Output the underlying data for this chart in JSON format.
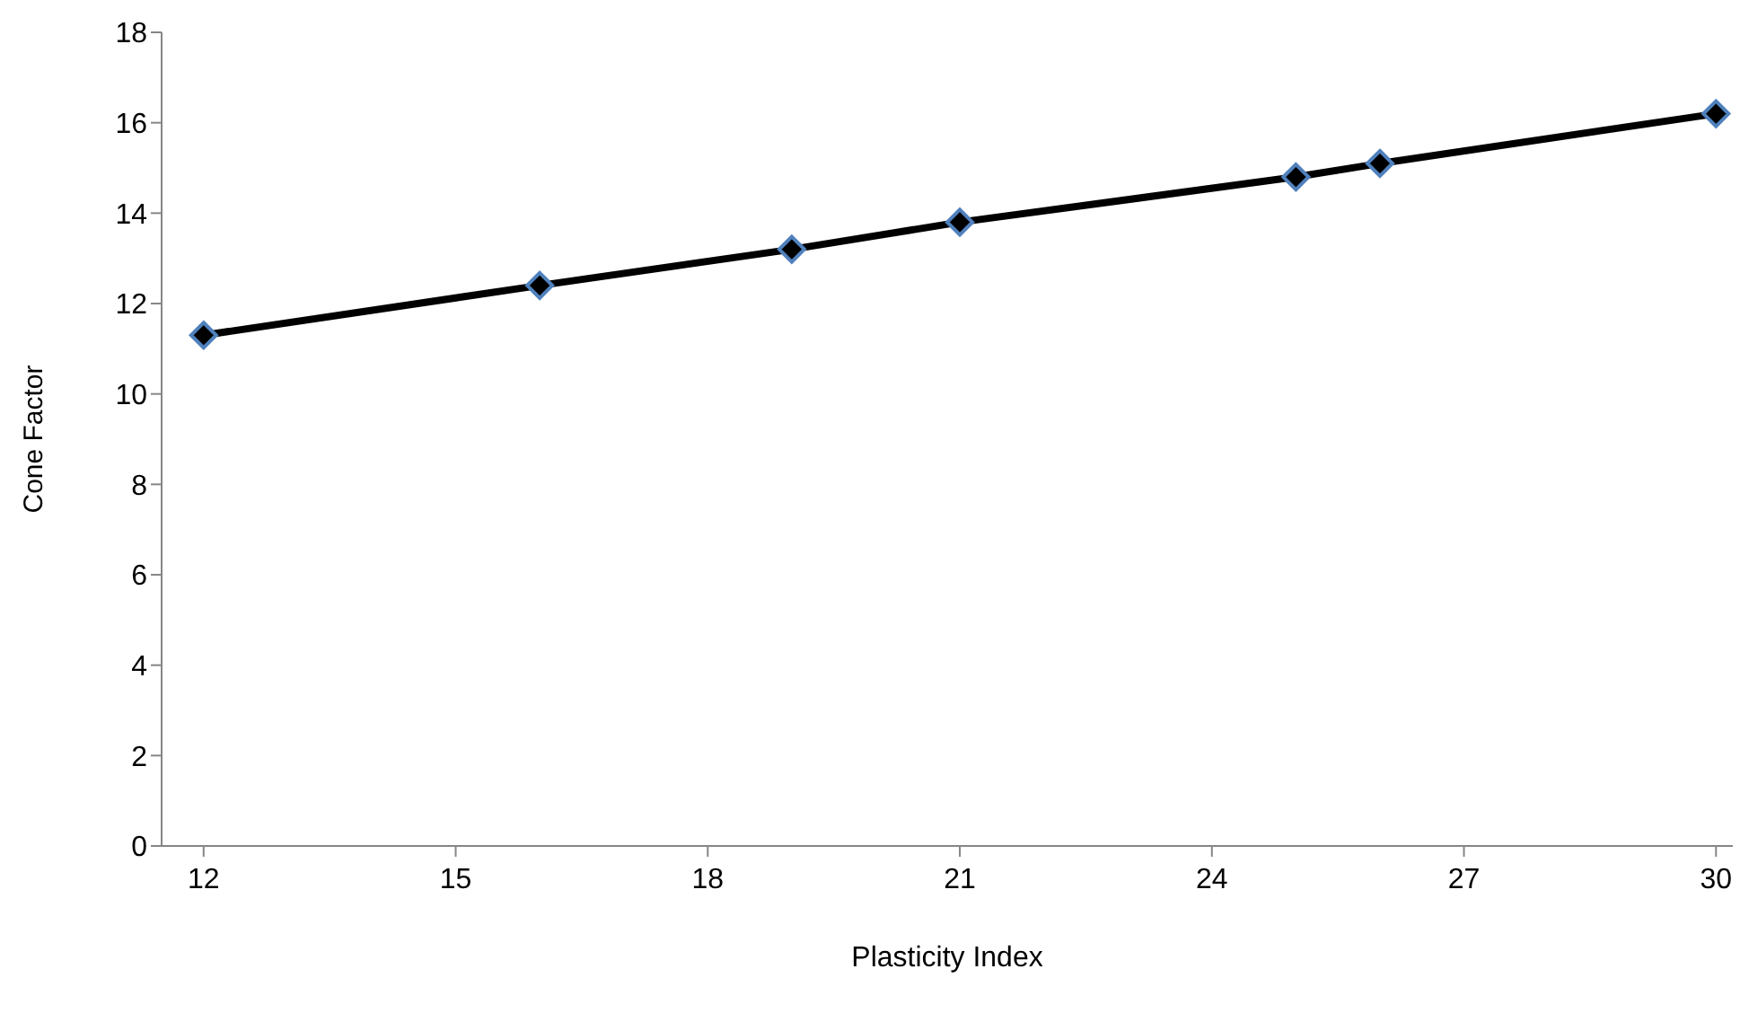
{
  "chart_data": {
    "type": "line",
    "xlabel": "Plasticity Index",
    "ylabel": "Cone Factor",
    "x": [
      12,
      16,
      19,
      21,
      25,
      26,
      30
    ],
    "series": [
      {
        "color": "#000000",
        "values": [
          11.3,
          12.4,
          13.2,
          13.8,
          14.8,
          15.1,
          16.2
        ]
      }
    ],
    "xlim": [
      11.5,
      30.2
    ],
    "xticks": [
      12,
      15,
      18,
      21,
      24,
      27,
      30
    ],
    "ylim": [
      0,
      18
    ],
    "yticks": [
      0,
      2,
      4,
      6,
      8,
      10,
      12,
      14,
      16,
      18
    ],
    "grid": false,
    "legend": false,
    "marker": "diamond",
    "line_style": "solid"
  }
}
